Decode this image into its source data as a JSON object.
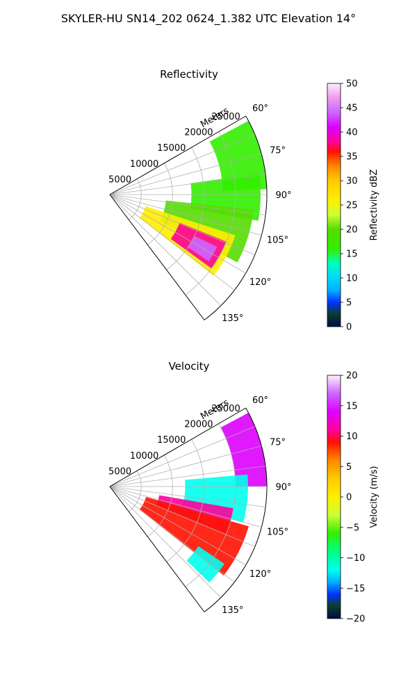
{
  "figure": {
    "title": "SKYLER-HU  SN14_202  0624_1.382 UTC Elevation 14°"
  },
  "chart_data": [
    {
      "type": "heatmap",
      "subtype": "polar-sector-ppi",
      "title": "Reflectivity",
      "radial_axis_label": "Meters",
      "radial_range_m": [
        0,
        25000
      ],
      "radial_ticks": [
        "5000",
        "10000",
        "15000",
        "20000",
        "25000"
      ],
      "azimuth_range_deg": [
        60,
        143
      ],
      "azimuth_ticks": [
        "60°",
        "75°",
        "90°",
        "105°",
        "120°",
        "135°"
      ],
      "grid": true,
      "colorbar": {
        "label": "Reflectivity dBZ",
        "range": [
          0,
          50
        ],
        "ticks": [
          "0",
          "5",
          "10",
          "15",
          "20",
          "25",
          "30",
          "35",
          "40",
          "45",
          "50"
        ],
        "stops": [
          {
            "v": 0,
            "c": "#000a4d"
          },
          {
            "v": 2.5,
            "c": "#0c3d2a"
          },
          {
            "v": 5,
            "c": "#0033ff"
          },
          {
            "v": 7.5,
            "c": "#00b0ff"
          },
          {
            "v": 10,
            "c": "#00d8ff"
          },
          {
            "v": 13,
            "c": "#00ffbb"
          },
          {
            "v": 16,
            "c": "#33ee00"
          },
          {
            "v": 20,
            "c": "#55dd00"
          },
          {
            "v": 23,
            "c": "#ccff33"
          },
          {
            "v": 26,
            "c": "#ffee00"
          },
          {
            "v": 30,
            "c": "#ffcc00"
          },
          {
            "v": 33,
            "c": "#ff8800"
          },
          {
            "v": 36,
            "c": "#ff1100"
          },
          {
            "v": 38,
            "c": "#ff0099"
          },
          {
            "v": 41,
            "c": "#dd00ff"
          },
          {
            "v": 44,
            "c": "#cc66ff"
          },
          {
            "v": 47,
            "c": "#ee99ee"
          },
          {
            "v": 50,
            "c": "#fff0ff"
          }
        ]
      },
      "echo_regions": [
        {
          "az": [
            62,
            88
          ],
          "r": [
            18000,
            25000
          ],
          "value": 17
        },
        {
          "az": [
            82,
            100
          ],
          "r": [
            13000,
            24000
          ],
          "value": 19
        },
        {
          "az": [
            96,
            118
          ],
          "r": [
            9000,
            23000
          ],
          "value": 22
        },
        {
          "az": [
            108,
            128
          ],
          "r": [
            6000,
            21000
          ],
          "value": 28
        },
        {
          "az": [
            112,
            126
          ],
          "r": [
            12000,
            20000
          ],
          "value": 38
        },
        {
          "az": [
            116,
            124
          ],
          "r": [
            15000,
            19000
          ],
          "value": 45
        }
      ]
    },
    {
      "type": "heatmap",
      "subtype": "polar-sector-ppi",
      "title": "Velocity",
      "radial_axis_label": "Meters",
      "radial_range_m": [
        0,
        25000
      ],
      "radial_ticks": [
        "5000",
        "10000",
        "15000",
        "20000",
        "25000"
      ],
      "azimuth_range_deg": [
        60,
        143
      ],
      "azimuth_ticks": [
        "60°",
        "75°",
        "90°",
        "105°",
        "120°",
        "135°"
      ],
      "grid": true,
      "colorbar": {
        "label": "Velocity (m/s)",
        "range": [
          -20,
          20
        ],
        "ticks": [
          "−20",
          "−15",
          "−10",
          "−5",
          "0",
          "5",
          "10",
          "15",
          "20"
        ],
        "stops": [
          {
            "v": -20,
            "c": "#000a4d"
          },
          {
            "v": -18,
            "c": "#0c3d2a"
          },
          {
            "v": -16,
            "c": "#0033ff"
          },
          {
            "v": -14,
            "c": "#00b0ff"
          },
          {
            "v": -12,
            "c": "#00ffee"
          },
          {
            "v": -9,
            "c": "#00ff88"
          },
          {
            "v": -6,
            "c": "#33ee00"
          },
          {
            "v": -3,
            "c": "#ccff33"
          },
          {
            "v": 0,
            "c": "#ffee00"
          },
          {
            "v": 3,
            "c": "#ffcc00"
          },
          {
            "v": 6,
            "c": "#ff8800"
          },
          {
            "v": 9,
            "c": "#ff1100"
          },
          {
            "v": 11,
            "c": "#ff0099"
          },
          {
            "v": 14,
            "c": "#dd00ff"
          },
          {
            "v": 17,
            "c": "#cc66ff"
          },
          {
            "v": 20,
            "c": "#fff0ff"
          }
        ]
      },
      "echo_regions": [
        {
          "az": [
            62,
            90
          ],
          "r": [
            20000,
            25000
          ],
          "value": 15
        },
        {
          "az": [
            85,
            105
          ],
          "r": [
            12000,
            22000
          ],
          "value": -11
        },
        {
          "az": [
            100,
            112
          ],
          "r": [
            8000,
            20000
          ],
          "value": 13
        },
        {
          "az": [
            106,
            128
          ],
          "r": [
            6000,
            23000
          ],
          "value": 10
        },
        {
          "az": [
            124,
            134
          ],
          "r": [
            17000,
            22000
          ],
          "value": -12
        }
      ]
    }
  ]
}
